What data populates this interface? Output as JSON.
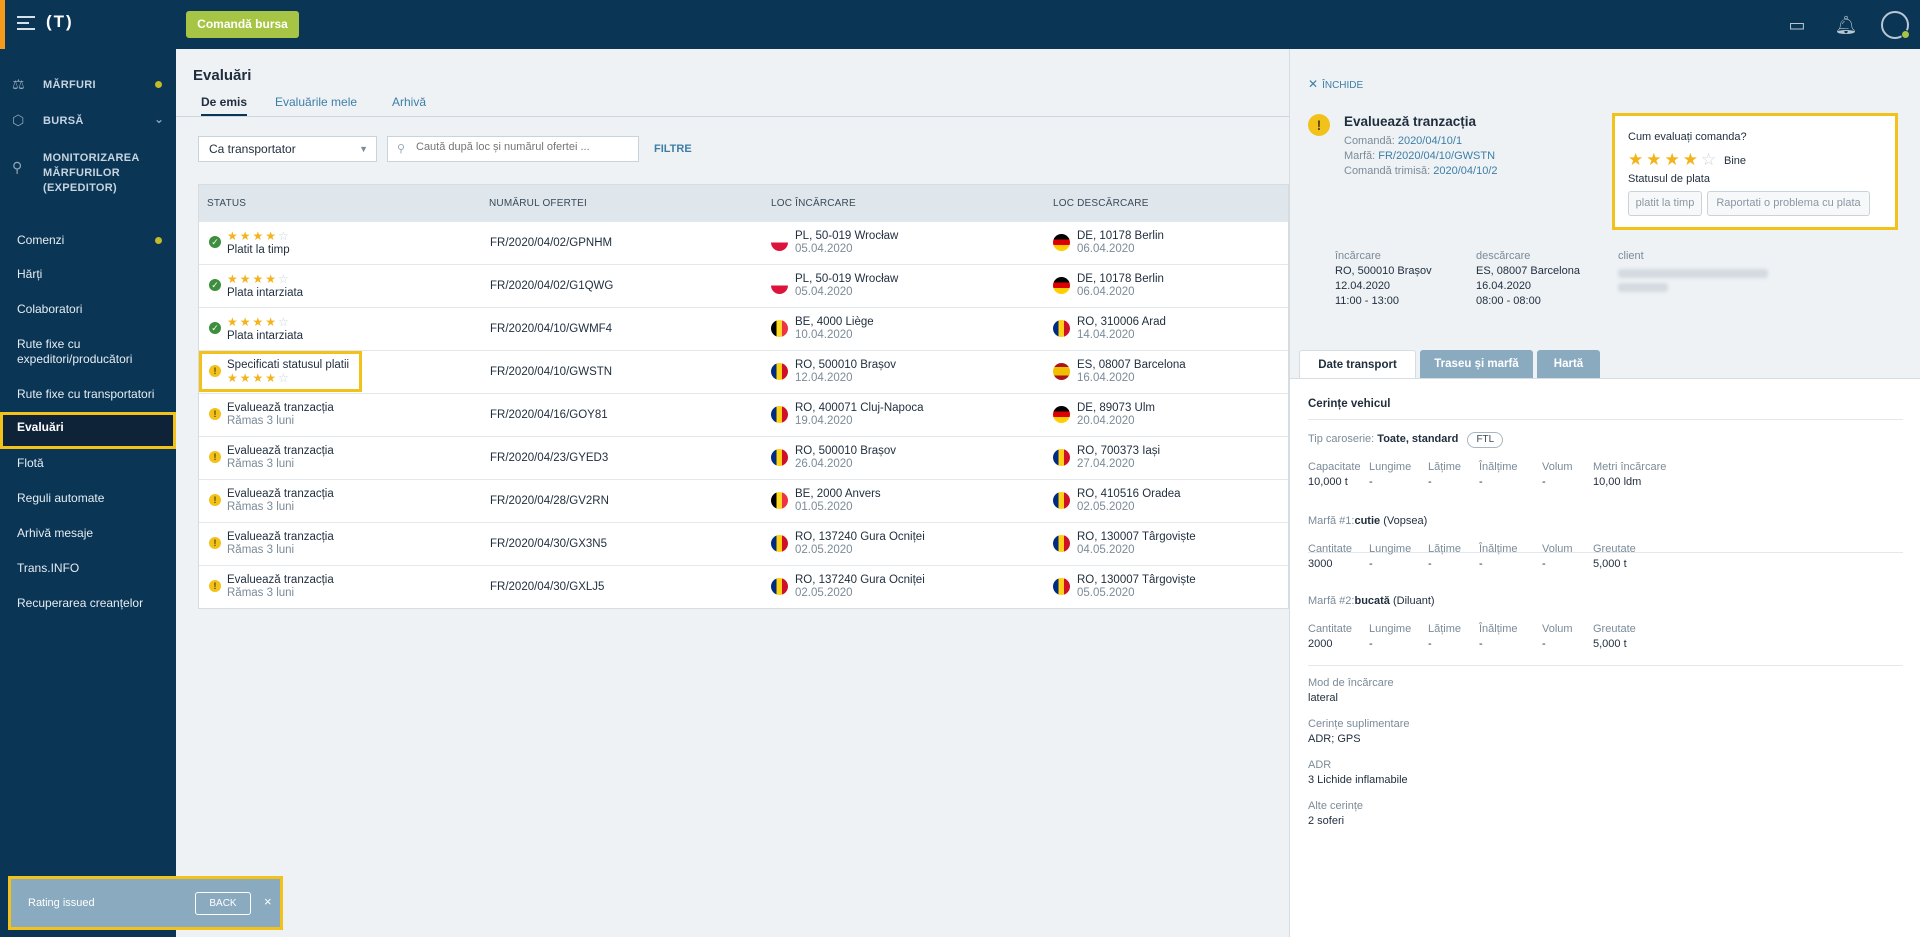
{
  "topbar": {
    "logo": "(T)",
    "order_button": "Comandă bursa",
    "icons": [
      "chat-icon",
      "bell-icon",
      "user-icon"
    ]
  },
  "sidebar": {
    "groups": [
      {
        "label": "MĂRFURI",
        "icon": "goods-icon",
        "dot": true
      },
      {
        "label": "BURSĂ",
        "icon": "box-icon",
        "chevron": true
      },
      {
        "label": "MONITORIZAREA MĂRFURILOR (EXPEDITOR)",
        "icon": "monitor-icon"
      }
    ],
    "items": [
      {
        "label": "Comenzi",
        "dot": true
      },
      {
        "label": "Hărți"
      },
      {
        "label": "Colaboratori"
      },
      {
        "label": "Rute fixe cu expeditori/producători"
      },
      {
        "label": "Rute fixe cu transportatori"
      },
      {
        "label": "Evaluări",
        "active": true
      },
      {
        "label": "Flotă"
      },
      {
        "label": "Reguli automate"
      },
      {
        "label": "Arhivă mesaje"
      },
      {
        "label": "Trans.INFO"
      },
      {
        "label": "Recuperarea creanțelor"
      }
    ]
  },
  "main": {
    "title": "Evaluări",
    "tabs": [
      "De emis",
      "Evaluările mele",
      "Arhivă"
    ],
    "select_value": "Ca transportator",
    "search_placeholder": "Caută după loc și numărul ofertei ...",
    "filters_label": "FILTRE",
    "columns": [
      "STATUS",
      "NUMĂRUL OFERTEI",
      "LOC ÎNCĂRCARE",
      "LOC DESCĂRCARE"
    ],
    "rows": [
      {
        "status": "ok",
        "stars": 4,
        "label": "Platit la timp",
        "offer": "FR/2020/04/02/GPNHM",
        "load_flag": "pl",
        "load": "PL, 50-019 Wrocław",
        "load_date": "05.04.2020",
        "unload_flag": "de",
        "unload": "DE, 10178 Berlin",
        "unload_date": "06.04.2020"
      },
      {
        "status": "ok",
        "stars": 4,
        "label": "Plata intarziata",
        "offer": "FR/2020/04/02/G1QWG",
        "load_flag": "pl",
        "load": "PL, 50-019 Wrocław",
        "load_date": "05.04.2020",
        "unload_flag": "de",
        "unload": "DE, 10178 Berlin",
        "unload_date": "06.04.2020"
      },
      {
        "status": "ok",
        "stars": 4,
        "label": "Plata intarziata",
        "offer": "FR/2020/04/10/GWMF4",
        "load_flag": "be",
        "load": "BE, 4000 Liège",
        "load_date": "10.04.2020",
        "unload_flag": "ro",
        "unload": "RO, 310006 Arad",
        "unload_date": "14.04.2020"
      },
      {
        "status": "warn",
        "stars": 4,
        "label": "Specificati statusul platii",
        "offer": "FR/2020/04/10/GWSTN",
        "load_flag": "ro",
        "load": "RO, 500010 Brașov",
        "load_date": "12.04.2020",
        "unload_flag": "es",
        "unload": "ES, 08007 Barcelona",
        "unload_date": "16.04.2020",
        "highlight": true
      },
      {
        "status": "warn",
        "label": "Evaluează tranzacția",
        "sub": "Rămas 3 luni",
        "offer": "FR/2020/04/16/GOY81",
        "load_flag": "ro",
        "load": "RO, 400071 Cluj-Napoca",
        "load_date": "19.04.2020",
        "unload_flag": "de",
        "unload": "DE, 89073 Ulm",
        "unload_date": "20.04.2020"
      },
      {
        "status": "warn",
        "label": "Evaluează tranzacția",
        "sub": "Rămas 3 luni",
        "offer": "FR/2020/04/23/GYED3",
        "load_flag": "ro",
        "load": "RO, 500010 Brașov",
        "load_date": "26.04.2020",
        "unload_flag": "ro",
        "unload": "RO, 700373 Iași",
        "unload_date": "27.04.2020"
      },
      {
        "status": "warn",
        "label": "Evaluează tranzacția",
        "sub": "Rămas 3 luni",
        "offer": "FR/2020/04/28/GV2RN",
        "load_flag": "be",
        "load": "BE, 2000 Anvers",
        "load_date": "01.05.2020",
        "unload_flag": "ro",
        "unload": "RO, 410516 Oradea",
        "unload_date": "02.05.2020"
      },
      {
        "status": "warn",
        "label": "Evaluează tranzacția",
        "sub": "Rămas 3 luni",
        "offer": "FR/2020/04/30/GX3N5",
        "load_flag": "ro",
        "load": "RO, 137240 Gura Ocniței",
        "load_date": "02.05.2020",
        "unload_flag": "ro",
        "unload": "RO, 130007 Târgoviște",
        "unload_date": "04.05.2020"
      },
      {
        "status": "warn",
        "label": "Evaluează tranzacția",
        "sub": "Rămas 3 luni",
        "offer": "FR/2020/04/30/GXLJ5",
        "load_flag": "ro",
        "load": "RO, 137240 Gura Ocniței",
        "load_date": "02.05.2020",
        "unload_flag": "ro",
        "unload": "RO, 130007 Târgoviște",
        "unload_date": "05.05.2020"
      }
    ]
  },
  "panel": {
    "close_label": "ÎNCHIDE",
    "title": "Evaluează tranzacția",
    "order_label": "Comandă:",
    "order_value": "2020/04/10/1",
    "cargo_label": "Marfă:",
    "cargo_value": "FR/2020/04/10/GWSTN",
    "sent_label": "Comandă trimisă:",
    "sent_value": "2020/04/10/2",
    "rate_question": "Cum evaluați comanda?",
    "rate_stars": 4,
    "rate_word": "Bine",
    "payment_status_label": "Statusul de plata",
    "btn_paid": "platit la timp",
    "btn_report": "Raportati o problema cu plata",
    "loading": {
      "h": "încărcare",
      "place": "RO, 500010 Brașov",
      "date": "12.04.2020",
      "time": "11:00 - 13:00"
    },
    "unloading": {
      "h": "descărcare",
      "place": "ES, 08007 Barcelona",
      "date": "16.04.2020",
      "time": "08:00 - 08:00"
    },
    "client_label": "client",
    "tabs": [
      "Date transport",
      "Traseu și marfă",
      "Hartă"
    ],
    "vehicle_title": "Cerințe vehicul",
    "body_label": "Tip caroserie:",
    "body_value": "Toate, standard",
    "body_pill": "FTL",
    "vehicle_cols": [
      {
        "h": "Capacitate",
        "v": "10,000 t"
      },
      {
        "h": "Lungime",
        "v": "-"
      },
      {
        "h": "Lățime",
        "v": "-"
      },
      {
        "h": "Înălțime",
        "v": "-"
      },
      {
        "h": "Volum",
        "v": "-"
      },
      {
        "h": "Metri încărcare",
        "v": "10,00 ldm"
      }
    ],
    "cargo1_label": "Marfă #1:",
    "cargo1_name": "cutie",
    "cargo1_extra": "(Vopsea)",
    "cargo1_cols": [
      {
        "h": "Cantitate",
        "v": "3000"
      },
      {
        "h": "Lungime",
        "v": "-"
      },
      {
        "h": "Lățime",
        "v": "-"
      },
      {
        "h": "Înălțime",
        "v": "-"
      },
      {
        "h": "Volum",
        "v": "-"
      },
      {
        "h": "Greutate",
        "v": "5,000 t"
      }
    ],
    "cargo2_label": "Marfă #2:",
    "cargo2_name": "bucată",
    "cargo2_extra": "(Diluant)",
    "cargo2_cols": [
      {
        "h": "Cantitate",
        "v": "2000"
      },
      {
        "h": "Lungime",
        "v": "-"
      },
      {
        "h": "Lățime",
        "v": "-"
      },
      {
        "h": "Înălțime",
        "v": "-"
      },
      {
        "h": "Volum",
        "v": "-"
      },
      {
        "h": "Greutate",
        "v": "5,000 t"
      }
    ],
    "extras": [
      {
        "h": "Mod de încărcare",
        "v": "lateral"
      },
      {
        "h": "Cerințe suplimentare",
        "v": "ADR; GPS"
      },
      {
        "h": "ADR",
        "v": "3 Lichide inflamabile"
      },
      {
        "h": "Alte cerințe",
        "v": "2 soferi"
      }
    ]
  },
  "toast": {
    "message": "Rating issued",
    "back_label": "BACK",
    "close": "×"
  }
}
